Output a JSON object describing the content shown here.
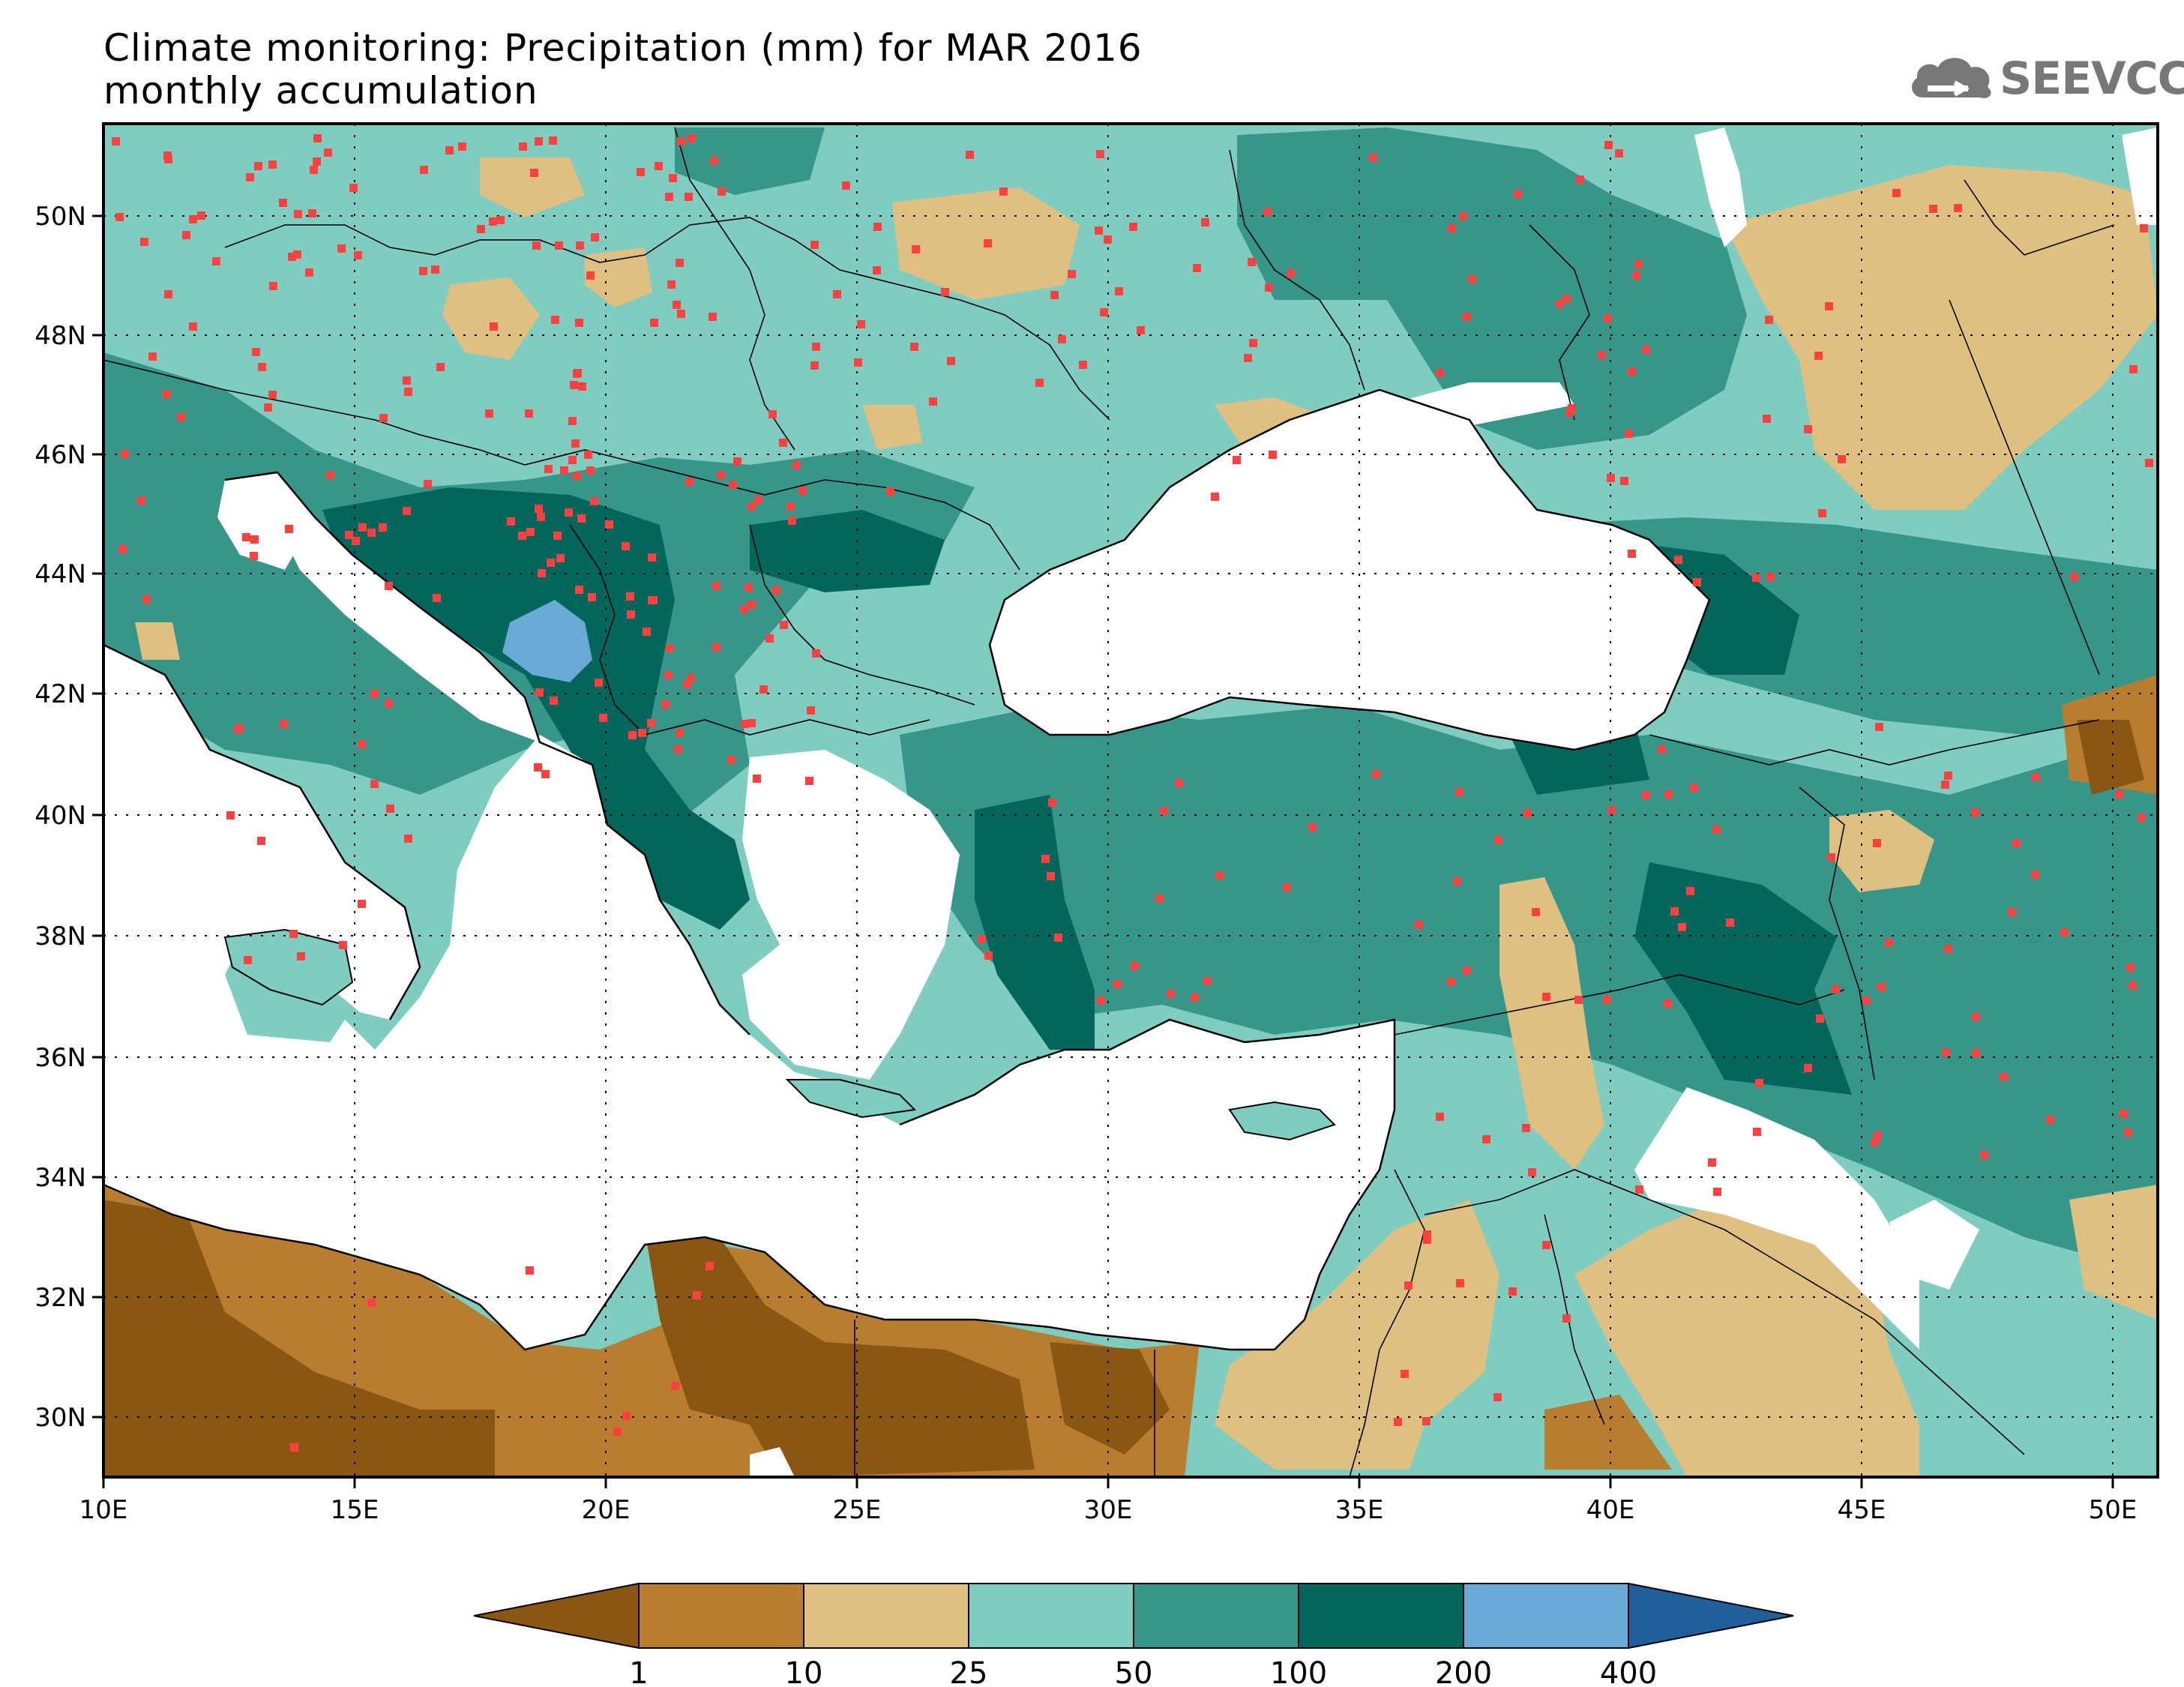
{
  "title": {
    "line1": "Climate monitoring: Precipitation (mm) for MAR 2016",
    "line2": "monthly accumulation"
  },
  "logo": {
    "text": "SEEVCCC"
  },
  "axes": {
    "lon_labels": [
      "10E",
      "15E",
      "20E",
      "25E",
      "30E",
      "35E",
      "40E",
      "45E",
      "50E"
    ],
    "lat_labels": [
      "50N",
      "48N",
      "46N",
      "44N",
      "42N",
      "40N",
      "38N",
      "36N",
      "34N",
      "32N",
      "30N"
    ]
  },
  "colorbar": {
    "labels": [
      "1",
      "10",
      "25",
      "50",
      "100",
      "200",
      "400"
    ],
    "colors": [
      "#8a5614",
      "#b97d2f",
      "#dfc080",
      "#7ecdc0",
      "#36968a",
      "#03665c",
      "#6aaad6",
      "#215f9a"
    ]
  },
  "colors": {
    "sea": "#ffffff",
    "station": "#ff4040",
    "border": "#000000"
  }
}
